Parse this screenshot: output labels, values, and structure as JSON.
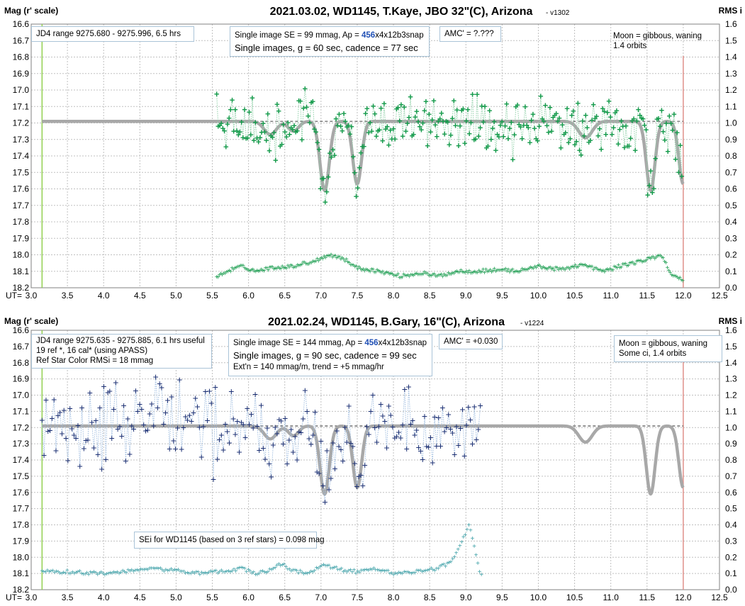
{
  "colors": {
    "green": "#139a4a",
    "green_link": "#8fd0a8",
    "navy": "#1b2f73",
    "navy_link": "#9fbde0",
    "teal": "#3a9fa6",
    "model": "#a8a8a8",
    "start_line": "#92d050",
    "end_line": "#e0908a",
    "grid": "#c0c0c0"
  },
  "chart_data": [
    {
      "type": "scatter",
      "title": "2021.03.02, WD1145, T.Kaye, JBO 32\"(C), Arizona",
      "version": "- v1302",
      "ylabel_left": "Mag (r' scale)",
      "ylabel_right": "RMS i",
      "x_prefix": "UT=",
      "xlim": [
        3.0,
        12.5
      ],
      "x_ticks": [
        3.0,
        3.5,
        4.0,
        4.5,
        5.0,
        5.5,
        6.0,
        6.5,
        7.0,
        7.5,
        8.0,
        8.5,
        9.0,
        9.5,
        10.0,
        10.5,
        11.0,
        11.5,
        12.0,
        12.5
      ],
      "x_tick_labels": [
        "3.0",
        "3.5",
        "4.0",
        "4.5",
        "5.0",
        "5.5",
        "6.0",
        "6.5",
        "7.0",
        "7.5",
        "8.0",
        "8.5",
        "9.0",
        "9.5",
        "10.0",
        "10.5",
        "11.0",
        "11.5",
        "12.0",
        "12.5"
      ],
      "ylim": [
        16.6,
        18.2
      ],
      "y_inverted": true,
      "y_tick_labels": [
        "16.6",
        "16.7",
        "16.8",
        "16.9",
        "17.0",
        "17.1",
        "17.2",
        "17.3",
        "17.4",
        "17.5",
        "17.6",
        "17.7",
        "17.8",
        "17.9",
        "18.0",
        "18.1",
        "18.2"
      ],
      "y2lim": [
        0,
        1.6
      ],
      "y2_tick_labels": [
        "1.6",
        "1.5",
        "1.4",
        "1.3",
        "1.2",
        "1.1",
        "1.0",
        "0.9",
        "0.8",
        "0.7",
        "0.6",
        "0.5",
        "0.4",
        "0.3",
        "0.2",
        "0.1",
        "0.0"
      ],
      "grid": true,
      "reference_mag": 17.19,
      "model_span": [
        3.15,
        12.0
      ],
      "dips": [
        {
          "ut": 6.3,
          "depth": 0.08,
          "width": 0.12
        },
        {
          "ut": 6.62,
          "depth": 0.06,
          "width": 0.1
        },
        {
          "ut": 7.05,
          "depth": 0.42,
          "width": 0.09
        },
        {
          "ut": 7.5,
          "depth": 0.38,
          "width": 0.085
        },
        {
          "ut": 10.65,
          "depth": 0.1,
          "width": 0.13
        },
        {
          "ut": 11.55,
          "depth": 0.42,
          "width": 0.085
        },
        {
          "ut": 12.0,
          "depth": 0.38,
          "width": 0.085
        }
      ],
      "start_ut": 3.15,
      "end_ut": 12.0,
      "data_span": [
        5.56,
        12.0
      ],
      "cadence_hr": 0.0214,
      "star_symbol": "+",
      "scatter_rms": 0.09,
      "sei_points": [
        [
          5.55,
          0.06
        ],
        [
          5.7,
          0.1
        ],
        [
          5.9,
          0.13
        ],
        [
          6.1,
          0.1
        ],
        [
          6.3,
          0.12
        ],
        [
          6.6,
          0.13
        ],
        [
          6.9,
          0.16
        ],
        [
          7.1,
          0.2
        ],
        [
          7.3,
          0.18
        ],
        [
          7.5,
          0.12
        ],
        [
          7.8,
          0.1
        ],
        [
          8.1,
          0.07
        ],
        [
          8.4,
          0.09
        ],
        [
          8.6,
          0.07
        ],
        [
          8.9,
          0.1
        ],
        [
          9.2,
          0.1
        ],
        [
          9.5,
          0.11
        ],
        [
          9.7,
          0.1
        ],
        [
          10.0,
          0.13
        ],
        [
          10.3,
          0.11
        ],
        [
          10.6,
          0.14
        ],
        [
          10.9,
          0.1
        ],
        [
          11.2,
          0.14
        ],
        [
          11.5,
          0.17
        ],
        [
          11.7,
          0.2
        ],
        [
          11.85,
          0.07
        ],
        [
          12.0,
          0.05
        ]
      ],
      "annotations": {
        "jd_range": "JD4 range 9275.680 - 9275.996, 6.5 hrs",
        "se_prefix": "Single image SE = 99 mmag, Ap = ",
        "ap_value": "456",
        "ap_suffix": "x4x12b3snap",
        "single_images": "Single images, g = 60 sec, cadence = 77 sec",
        "amc": "AMC' = ?.???",
        "moon_line1": "Moon = gibbous, waning",
        "moon_line2": "1.4 orbits"
      }
    },
    {
      "type": "scatter",
      "title": "2021.02.24, WD1145, B.Gary, 16\"(C), Arizona",
      "version": "- v1224",
      "ylabel_left": "Mag (r' scale)",
      "ylabel_right": "RMS i",
      "x_prefix": "UT=",
      "xlim": [
        3.0,
        12.5
      ],
      "x_ticks": [
        3.0,
        3.5,
        4.0,
        4.5,
        5.0,
        5.5,
        6.0,
        6.5,
        7.0,
        7.5,
        8.0,
        8.5,
        9.0,
        9.5,
        10.0,
        10.5,
        11.0,
        11.5,
        12.0,
        12.5
      ],
      "x_tick_labels": [
        "3.0",
        "3.5",
        "4.0",
        "4.5",
        "5.0",
        "5.5",
        "6.0",
        "6.5",
        "7.0",
        "7.5",
        "8.0",
        "8.5",
        "9.0",
        "9.5",
        "10.0",
        "10.5",
        "11.0",
        "11.5",
        "12.0",
        "12.5"
      ],
      "ylim": [
        16.6,
        18.2
      ],
      "y_inverted": true,
      "y_tick_labels": [
        "16.6",
        "16.7",
        "16.8",
        "16.9",
        "17.0",
        "17.1",
        "17.2",
        "17.3",
        "17.4",
        "17.5",
        "17.6",
        "17.7",
        "17.8",
        "17.9",
        "18.0",
        "18.1",
        "18.2"
      ],
      "y2lim": [
        0,
        1.6
      ],
      "y2_tick_labels": [
        "1.6",
        "1.5",
        "1.4",
        "1.3",
        "1.2",
        "1.1",
        "1.0",
        "0.9",
        "0.8",
        "0.7",
        "0.6",
        "0.5",
        "0.4",
        "0.3",
        "0.2",
        "0.1",
        "0.0"
      ],
      "grid": true,
      "reference_mag": 17.19,
      "model_span": [
        3.15,
        12.0
      ],
      "dips": [
        {
          "ut": 6.3,
          "depth": 0.08,
          "width": 0.12
        },
        {
          "ut": 6.62,
          "depth": 0.06,
          "width": 0.1
        },
        {
          "ut": 7.05,
          "depth": 0.42,
          "width": 0.09
        },
        {
          "ut": 7.5,
          "depth": 0.38,
          "width": 0.085
        },
        {
          "ut": 10.65,
          "depth": 0.1,
          "width": 0.13
        },
        {
          "ut": 11.55,
          "depth": 0.42,
          "width": 0.085
        },
        {
          "ut": 12.0,
          "depth": 0.38,
          "width": 0.085
        }
      ],
      "start_ut": 3.15,
      "end_ut": 12.0,
      "data_span": [
        3.15,
        9.22
      ],
      "cadence_hr": 0.0275,
      "star_symbol": "+",
      "scatter_rms": 0.13,
      "sei_points": [
        [
          3.15,
          0.11
        ],
        [
          3.5,
          0.11
        ],
        [
          4.0,
          0.1
        ],
        [
          4.3,
          0.11
        ],
        [
          4.6,
          0.13
        ],
        [
          5.0,
          0.12
        ],
        [
          5.3,
          0.1
        ],
        [
          5.6,
          0.11
        ],
        [
          5.9,
          0.13
        ],
        [
          6.1,
          0.1
        ],
        [
          6.3,
          0.12
        ],
        [
          6.45,
          0.16
        ],
        [
          6.6,
          0.12
        ],
        [
          6.8,
          0.1
        ],
        [
          7.05,
          0.15
        ],
        [
          7.3,
          0.12
        ],
        [
          7.5,
          0.11
        ],
        [
          7.8,
          0.13
        ],
        [
          8.0,
          0.1
        ],
        [
          8.3,
          0.11
        ],
        [
          8.6,
          0.13
        ],
        [
          8.8,
          0.17
        ],
        [
          8.95,
          0.3
        ],
        [
          9.05,
          0.4
        ],
        [
          9.2,
          0.1
        ]
      ],
      "annotations": {
        "jd_range": "JD4 range 9275.635 - 9275.885, 6.1 hrs useful",
        "refs": "19 ref *, 16 cal* (using APASS)",
        "ref_color": "Ref Star Color RMSi = 18 mmag",
        "se_prefix": "Single image SE = 144 mmag, Ap = ",
        "ap_value": "456",
        "ap_suffix": "x4x12b3snap",
        "single_images": "Single images, g = 90 sec, cadence = 99 sec",
        "extn": "Ext'n = 140 mmag/m, trend = +5 mmag/hr",
        "amc": "AMC' = +0.030",
        "moon_line1": "Moon = gibbous, waning",
        "moon_line2": "Some ci, 1.4 orbits",
        "sei_note": "SEi for WD1145 (based on 3 ref stars) = 0.098 mag"
      }
    }
  ]
}
